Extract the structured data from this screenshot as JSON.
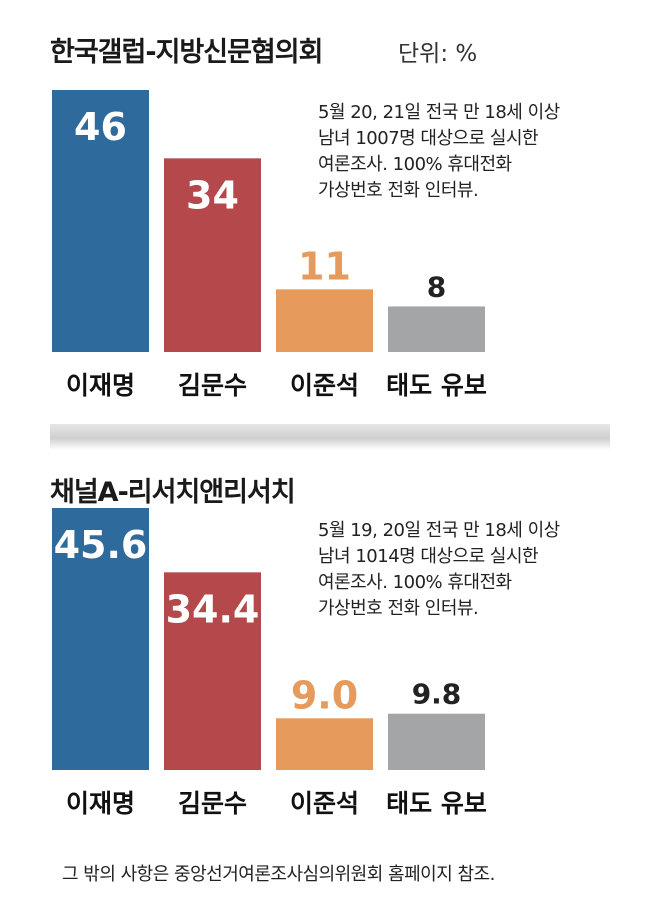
{
  "unit": "단위: %",
  "colors": {
    "이재명": "#2f6a9c",
    "김문수": "#b5484a",
    "이준석": "#e69a5c",
    "태도 유보": "#a3a5a7"
  },
  "chart_data": [
    {
      "type": "bar",
      "title": "한국갤럽-지방신문협의회",
      "categories": [
        "이재명",
        "김문수",
        "이준석",
        "태도 유보"
      ],
      "values": [
        46,
        34,
        11,
        8
      ],
      "value_labels": [
        "46",
        "34",
        "11",
        "8"
      ],
      "ylim": [
        0,
        46
      ],
      "note": "5월 20, 21일 전국 만 18세 이상\n남녀 1007명 대상으로 실시한\n여론조사. 100% 휴대전화\n가상번호 전화 인터뷰."
    },
    {
      "type": "bar",
      "title": "채널A-리서치앤리서치",
      "categories": [
        "이재명",
        "김문수",
        "이준석",
        "태도 유보"
      ],
      "values": [
        45.6,
        34.4,
        9.0,
        9.8
      ],
      "value_labels": [
        "45.6",
        "34.4",
        "9.0",
        "9.8"
      ],
      "ylim": [
        0,
        45.6
      ],
      "note": "5월 19, 20일 전국 만 18세 이상\n남녀 1014명 대상으로 실시한\n여론조사. 100% 휴대전화\n가상번호 전화 인터뷰."
    }
  ],
  "footer": "그 밖의 사항은 중앙선거여론조사심의위원회 홈페이지 참조."
}
